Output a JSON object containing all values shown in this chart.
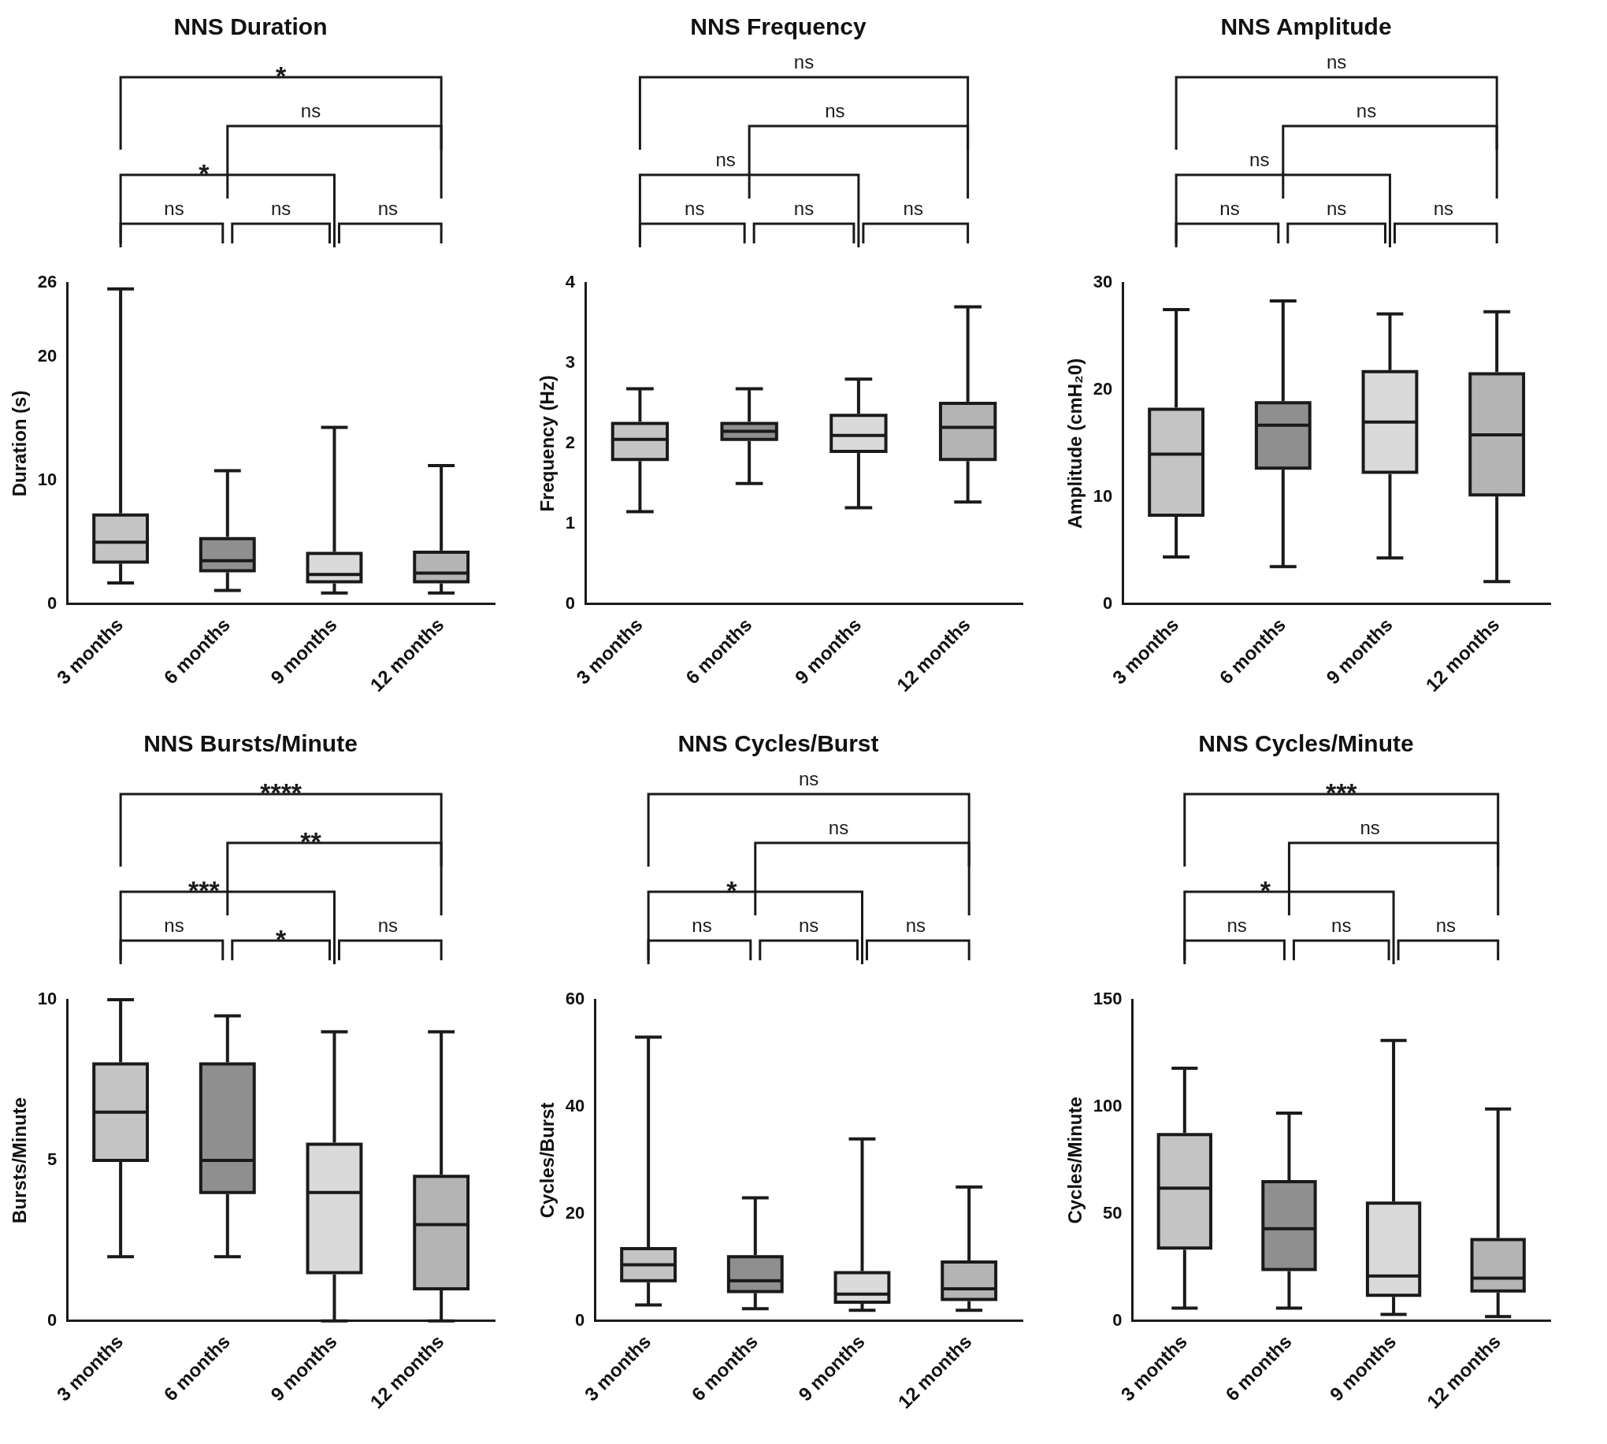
{
  "chart_data": [
    {
      "type": "box",
      "title": "NNS Duration",
      "ylabel": "Duration (s)",
      "categories": [
        "3 months",
        "6 months",
        "9 months",
        "12 months"
      ],
      "colors": [
        "#c4c4c4",
        "#8f8f8f",
        "#dadada",
        "#b4b4b4"
      ],
      "ylim": [
        0,
        26
      ],
      "yticks": [
        0,
        10,
        20,
        26
      ],
      "boxes": [
        {
          "low": 1.7,
          "q1": 3.4,
          "median": 5,
          "q3": 7.2,
          "high": 25.5
        },
        {
          "low": 1.1,
          "q1": 2.7,
          "median": 3.5,
          "q3": 5.3,
          "high": 10.8
        },
        {
          "low": 0.9,
          "q1": 1.8,
          "median": 2.4,
          "q3": 4.1,
          "high": 14.3
        },
        {
          "low": 0.9,
          "q1": 1.8,
          "median": 2.5,
          "q3": 4.2,
          "high": 11.2
        }
      ],
      "annotations": [
        "ns",
        "ns",
        "ns",
        "*",
        "ns",
        "*"
      ]
    },
    {
      "type": "box",
      "title": "NNS Frequency",
      "ylabel": "Frequency (Hz)",
      "categories": [
        "3 months",
        "6 months",
        "9 months",
        "12 months"
      ],
      "colors": [
        "#c4c4c4",
        "#8f8f8f",
        "#dadada",
        "#b4b4b4"
      ],
      "ylim": [
        0,
        4
      ],
      "yticks": [
        0,
        1,
        2,
        3,
        4
      ],
      "boxes": [
        {
          "low": 1.15,
          "q1": 1.8,
          "median": 2.05,
          "q3": 2.25,
          "high": 2.68
        },
        {
          "low": 1.5,
          "q1": 2.05,
          "median": 2.15,
          "q3": 2.25,
          "high": 2.68
        },
        {
          "low": 1.2,
          "q1": 1.9,
          "median": 2.1,
          "q3": 2.35,
          "high": 2.8
        },
        {
          "low": 1.27,
          "q1": 1.8,
          "median": 2.2,
          "q3": 2.5,
          "high": 3.7
        }
      ],
      "annotations": [
        "ns",
        "ns",
        "ns",
        "ns",
        "ns",
        "ns"
      ]
    },
    {
      "type": "box",
      "title": "NNS Amplitude",
      "ylabel": "Amplitude (cmH₂0)",
      "categories": [
        "3 months",
        "6 months",
        "9 months",
        "12 months"
      ],
      "colors": [
        "#c4c4c4",
        "#8f8f8f",
        "#dadada",
        "#b4b4b4"
      ],
      "ylim": [
        0,
        30
      ],
      "yticks": [
        0,
        10,
        20,
        30
      ],
      "boxes": [
        {
          "low": 4.4,
          "q1": 8.3,
          "median": 14,
          "q3": 18.2,
          "high": 27.5
        },
        {
          "low": 3.5,
          "q1": 12.7,
          "median": 16.7,
          "q3": 18.8,
          "high": 28.3
        },
        {
          "low": 4.3,
          "q1": 12.3,
          "median": 17,
          "q3": 21.7,
          "high": 27.1
        },
        {
          "low": 2.1,
          "q1": 10.2,
          "median": 15.8,
          "q3": 21.5,
          "high": 27.3
        }
      ],
      "annotations": [
        "ns",
        "ns",
        "ns",
        "ns",
        "ns",
        "ns"
      ]
    },
    {
      "type": "box",
      "title": "NNS Bursts/Minute",
      "ylabel": "Bursts/Minute",
      "categories": [
        "3 months",
        "6 months",
        "9 months",
        "12 months"
      ],
      "colors": [
        "#c4c4c4",
        "#8f8f8f",
        "#dadada",
        "#b4b4b4"
      ],
      "ylim": [
        0,
        10
      ],
      "yticks": [
        0,
        5,
        10
      ],
      "boxes": [
        {
          "low": 2,
          "q1": 5,
          "median": 6.5,
          "q3": 8,
          "high": 10
        },
        {
          "low": 2,
          "q1": 4,
          "median": 5,
          "q3": 8,
          "high": 9.5
        },
        {
          "low": 0,
          "q1": 1.5,
          "median": 4,
          "q3": 5.5,
          "high": 9
        },
        {
          "low": 0,
          "q1": 1,
          "median": 3,
          "q3": 4.5,
          "high": 9
        }
      ],
      "annotations": [
        "ns",
        "*",
        "ns",
        "***",
        "**",
        "****"
      ]
    },
    {
      "type": "box",
      "title": "NNS Cycles/Burst",
      "ylabel": "Cycles/Burst",
      "categories": [
        "3 months",
        "6 months",
        "9 months",
        "12 months"
      ],
      "colors": [
        "#c4c4c4",
        "#8f8f8f",
        "#dadada",
        "#b4b4b4"
      ],
      "ylim": [
        0,
        60
      ],
      "yticks": [
        0,
        20,
        40,
        60
      ],
      "boxes": [
        {
          "low": 3,
          "q1": 7.5,
          "median": 10.5,
          "q3": 13.5,
          "high": 53
        },
        {
          "low": 2.3,
          "q1": 5.5,
          "median": 7.5,
          "q3": 12,
          "high": 23
        },
        {
          "low": 2,
          "q1": 3.5,
          "median": 5,
          "q3": 9,
          "high": 34
        },
        {
          "low": 2,
          "q1": 4,
          "median": 6,
          "q3": 11,
          "high": 25
        }
      ],
      "annotations": [
        "ns",
        "ns",
        "ns",
        "*",
        "ns",
        "ns"
      ]
    },
    {
      "type": "box",
      "title": "NNS Cycles/Minute",
      "ylabel": "Cycles/Minute",
      "categories": [
        "3 months",
        "6 months",
        "9 months",
        "12 months"
      ],
      "colors": [
        "#c4c4c4",
        "#8f8f8f",
        "#dadada",
        "#b4b4b4"
      ],
      "ylim": [
        0,
        150
      ],
      "yticks": [
        0,
        50,
        100,
        150
      ],
      "boxes": [
        {
          "low": 6,
          "q1": 34,
          "median": 62,
          "q3": 87,
          "high": 118
        },
        {
          "low": 6,
          "q1": 24,
          "median": 43,
          "q3": 65,
          "high": 97
        },
        {
          "low": 3,
          "q1": 12,
          "median": 21,
          "q3": 55,
          "high": 131
        },
        {
          "low": 2,
          "q1": 14,
          "median": 20,
          "q3": 38,
          "high": 99
        }
      ],
      "annotations": [
        "ns",
        "ns",
        "ns",
        "*",
        "ns",
        "***"
      ]
    }
  ]
}
